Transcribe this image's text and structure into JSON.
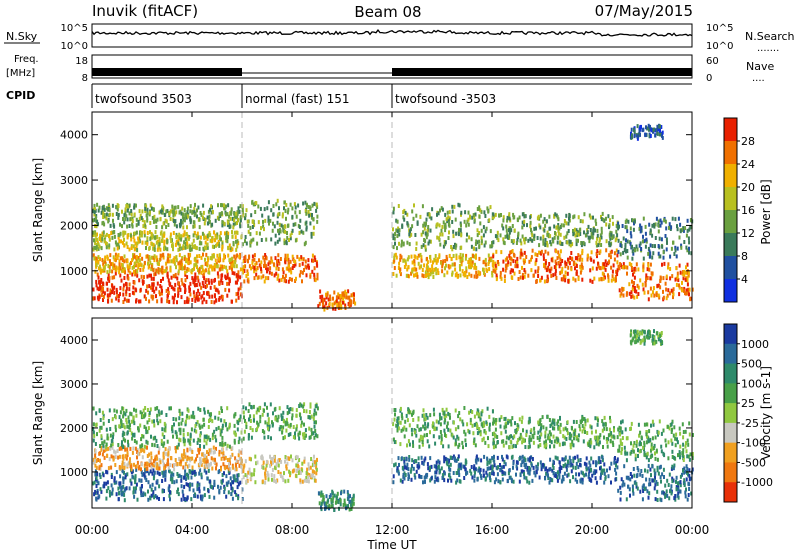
{
  "header": {
    "station": "Inuvik (fitACF)",
    "beam": "Beam 08",
    "date": "07/May/2015"
  },
  "panels": {
    "nsky": {
      "label": "N.Sky",
      "ticks_left": [
        "10^5",
        "10^0"
      ],
      "ticks_right": [
        "10^5",
        "10^0"
      ],
      "right_label": "N.Search",
      "right_legend": "......."
    },
    "freq": {
      "label_line1": "Freq.",
      "label_line2": "[MHz]",
      "ticks_left": [
        "18",
        "8"
      ],
      "ticks_right": [
        "60",
        "0"
      ],
      "right_label": "Nave",
      "right_legend": "...."
    },
    "cpid": {
      "label": "CPID",
      "segments": [
        {
          "name": "twofsound 3503",
          "start": 0,
          "end": 6
        },
        {
          "name": "normal (fast) 151",
          "start": 6,
          "end": 12
        },
        {
          "name": "twofsound -3503",
          "start": 12,
          "end": 24
        }
      ]
    }
  },
  "chart_data": [
    {
      "type": "heatmap",
      "name": "Power",
      "ylabel": "Slant Range [km]",
      "ylim": [
        180,
        4500
      ],
      "yticks": [
        "1000",
        "2000",
        "3000",
        "4000"
      ],
      "colorbar_label": "Power [dB]",
      "colorbar_ticks": [
        "4",
        "8",
        "12",
        "16",
        "20",
        "24",
        "28"
      ],
      "colors": [
        "#1030e0",
        "#2050a0",
        "#3a7a5a",
        "#6aa040",
        "#b8c020",
        "#f0b000",
        "#f07000",
        "#e82000"
      ],
      "echo_bands": [
        {
          "t0": 0,
          "t1": 6,
          "r0": 350,
          "r1": 1000,
          "level": 7
        },
        {
          "t0": 0,
          "t1": 6,
          "r0": 1000,
          "r1": 1400,
          "level": 5
        },
        {
          "t0": 0,
          "t1": 6,
          "r0": 1500,
          "r1": 1900,
          "level": 4
        },
        {
          "t0": 0,
          "t1": 6,
          "r0": 2000,
          "r1": 2500,
          "level": 3
        },
        {
          "t0": 6,
          "t1": 9,
          "r0": 800,
          "r1": 1400,
          "level": 6
        },
        {
          "t0": 6,
          "t1": 9,
          "r0": 1600,
          "r1": 2600,
          "level": 3
        },
        {
          "t0": 9,
          "t1": 10.5,
          "r0": 180,
          "r1": 600,
          "level": 6
        },
        {
          "t0": 12,
          "t1": 16,
          "r0": 900,
          "r1": 1400,
          "level": 5
        },
        {
          "t0": 12,
          "t1": 16,
          "r0": 1500,
          "r1": 2500,
          "level": 3
        },
        {
          "t0": 16,
          "t1": 21,
          "r0": 800,
          "r1": 1500,
          "level": 6
        },
        {
          "t0": 16,
          "t1": 21,
          "r0": 1600,
          "r1": 2300,
          "level": 3
        },
        {
          "t0": 21,
          "t1": 24,
          "r0": 400,
          "r1": 1200,
          "level": 6
        },
        {
          "t0": 21,
          "t1": 24,
          "r0": 1300,
          "r1": 2200,
          "level": 2
        },
        {
          "t0": 21.5,
          "t1": 22.8,
          "r0": 3950,
          "r1": 4250,
          "level": 1
        }
      ]
    },
    {
      "type": "heatmap",
      "name": "Velocity",
      "ylabel": "Slant Range [km]",
      "ylim": [
        180,
        4500
      ],
      "yticks": [
        "1000",
        "2000",
        "3000",
        "4000"
      ],
      "colorbar_label": "Velocity [m s-1]",
      "colorbar_ticks": [
        "1000",
        "500",
        "100",
        "25",
        "-25",
        "-100",
        "-500",
        "-1000"
      ],
      "colors": [
        "#1a3aa0",
        "#2a6a9a",
        "#2e8a6a",
        "#48a048",
        "#90c840",
        "#c8c8c0",
        "#f0a020",
        "#f07810",
        "#e83008"
      ],
      "echo_bands": [
        {
          "t0": 0,
          "t1": 6,
          "r0": 400,
          "r1": 1100,
          "level": 7
        },
        {
          "t0": 0,
          "t1": 6,
          "r0": 1100,
          "r1": 1600,
          "level": 2
        },
        {
          "t0": 0,
          "t1": 6,
          "r0": 1600,
          "r1": 2500,
          "level": 5
        },
        {
          "t0": 6,
          "t1": 9,
          "r0": 800,
          "r1": 1400,
          "level": 3
        },
        {
          "t0": 6,
          "t1": 9,
          "r0": 1800,
          "r1": 2600,
          "level": 5
        },
        {
          "t0": 9,
          "t1": 10.5,
          "r0": 180,
          "r1": 600,
          "level": 6
        },
        {
          "t0": 12,
          "t1": 16,
          "r0": 800,
          "r1": 1400,
          "level": 7
        },
        {
          "t0": 12,
          "t1": 16,
          "r0": 1600,
          "r1": 2500,
          "level": 5
        },
        {
          "t0": 16,
          "t1": 21,
          "r0": 800,
          "r1": 1400,
          "level": 7
        },
        {
          "t0": 16,
          "t1": 21,
          "r0": 1600,
          "r1": 2300,
          "level": 5
        },
        {
          "t0": 21,
          "t1": 24,
          "r0": 400,
          "r1": 1200,
          "level": 7
        },
        {
          "t0": 21,
          "t1": 24,
          "r0": 1300,
          "r1": 2200,
          "level": 5
        },
        {
          "t0": 21.5,
          "t1": 22.8,
          "r0": 3950,
          "r1": 4250,
          "level": 5
        }
      ]
    }
  ],
  "x_axis": {
    "label": "Time UT",
    "xlim": [
      0,
      24
    ],
    "ticks": [
      "00:00",
      "04:00",
      "08:00",
      "12:00",
      "16:00",
      "20:00",
      "00:00"
    ]
  }
}
